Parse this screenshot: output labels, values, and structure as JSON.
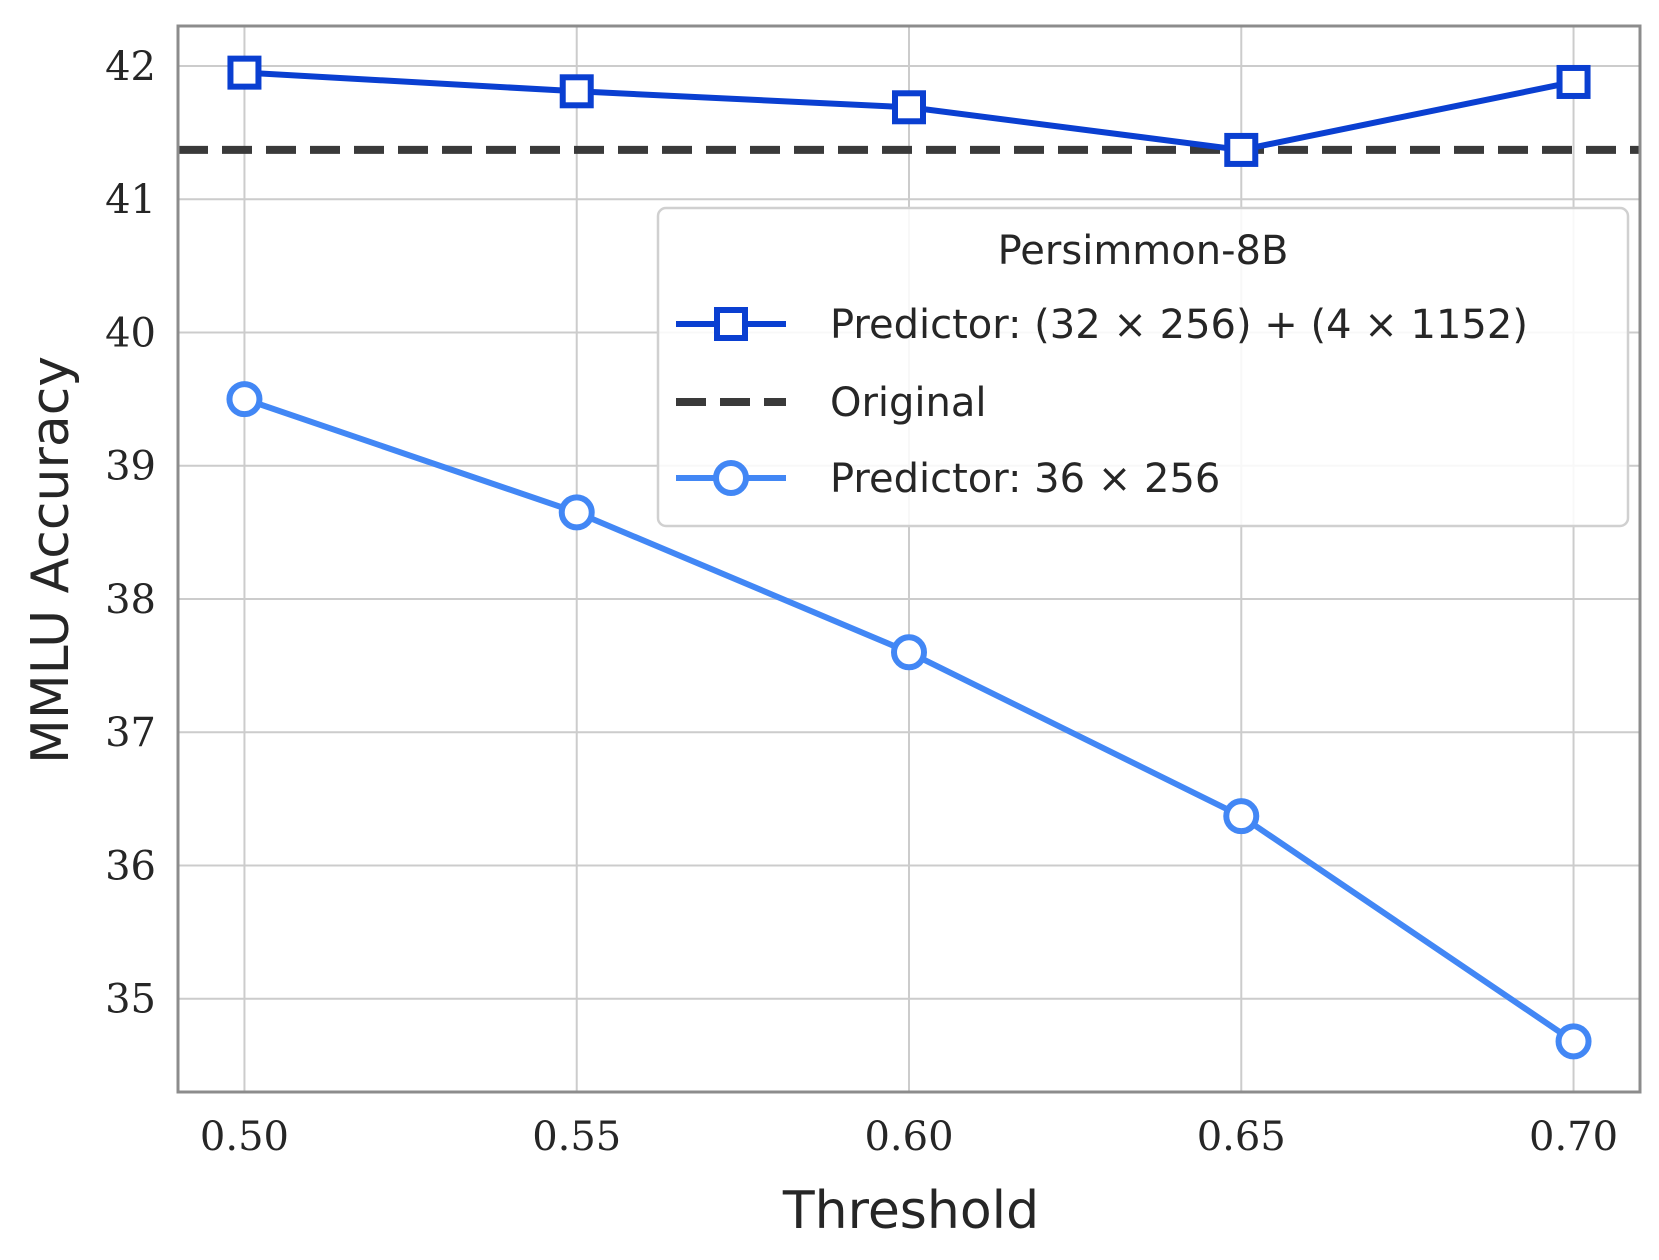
{
  "chart_data": {
    "type": "line",
    "title": "",
    "xlabel": "Threshold",
    "ylabel": "MMLU Accuracy",
    "x": [
      0.5,
      0.55,
      0.6,
      0.65,
      0.7
    ],
    "x_tick_labels": [
      "0.50",
      "0.55",
      "0.60",
      "0.65",
      "0.70"
    ],
    "y_ticks": [
      35,
      36,
      37,
      38,
      39,
      40,
      41,
      42
    ],
    "y_tick_labels": [
      "35",
      "36",
      "37",
      "38",
      "39",
      "40",
      "41",
      "42"
    ],
    "xlim": [
      0.49,
      0.71
    ],
    "ylim": [
      34.3,
      42.3
    ],
    "grid": true,
    "legend": {
      "title": "Persimmon-8B",
      "placement": "upper right",
      "entries": [
        "Predictor: (32 × 256) + (4 × 1152)",
        "Original",
        "Predictor: 36 × 256"
      ]
    },
    "series": [
      {
        "name": "Predictor: (32 × 256) + (4 × 1152)",
        "values": [
          41.95,
          41.81,
          41.69,
          41.37,
          41.88
        ],
        "color": "#0a3fd1",
        "marker": "square",
        "style": "solid"
      },
      {
        "name": "Original",
        "hline": 41.37,
        "color": "#3a3a3a",
        "style": "dashed"
      },
      {
        "name": "Predictor: 36 × 256",
        "values": [
          39.5,
          38.65,
          37.6,
          36.37,
          34.68
        ],
        "color": "#4287f5",
        "marker": "circle",
        "style": "solid"
      }
    ]
  }
}
